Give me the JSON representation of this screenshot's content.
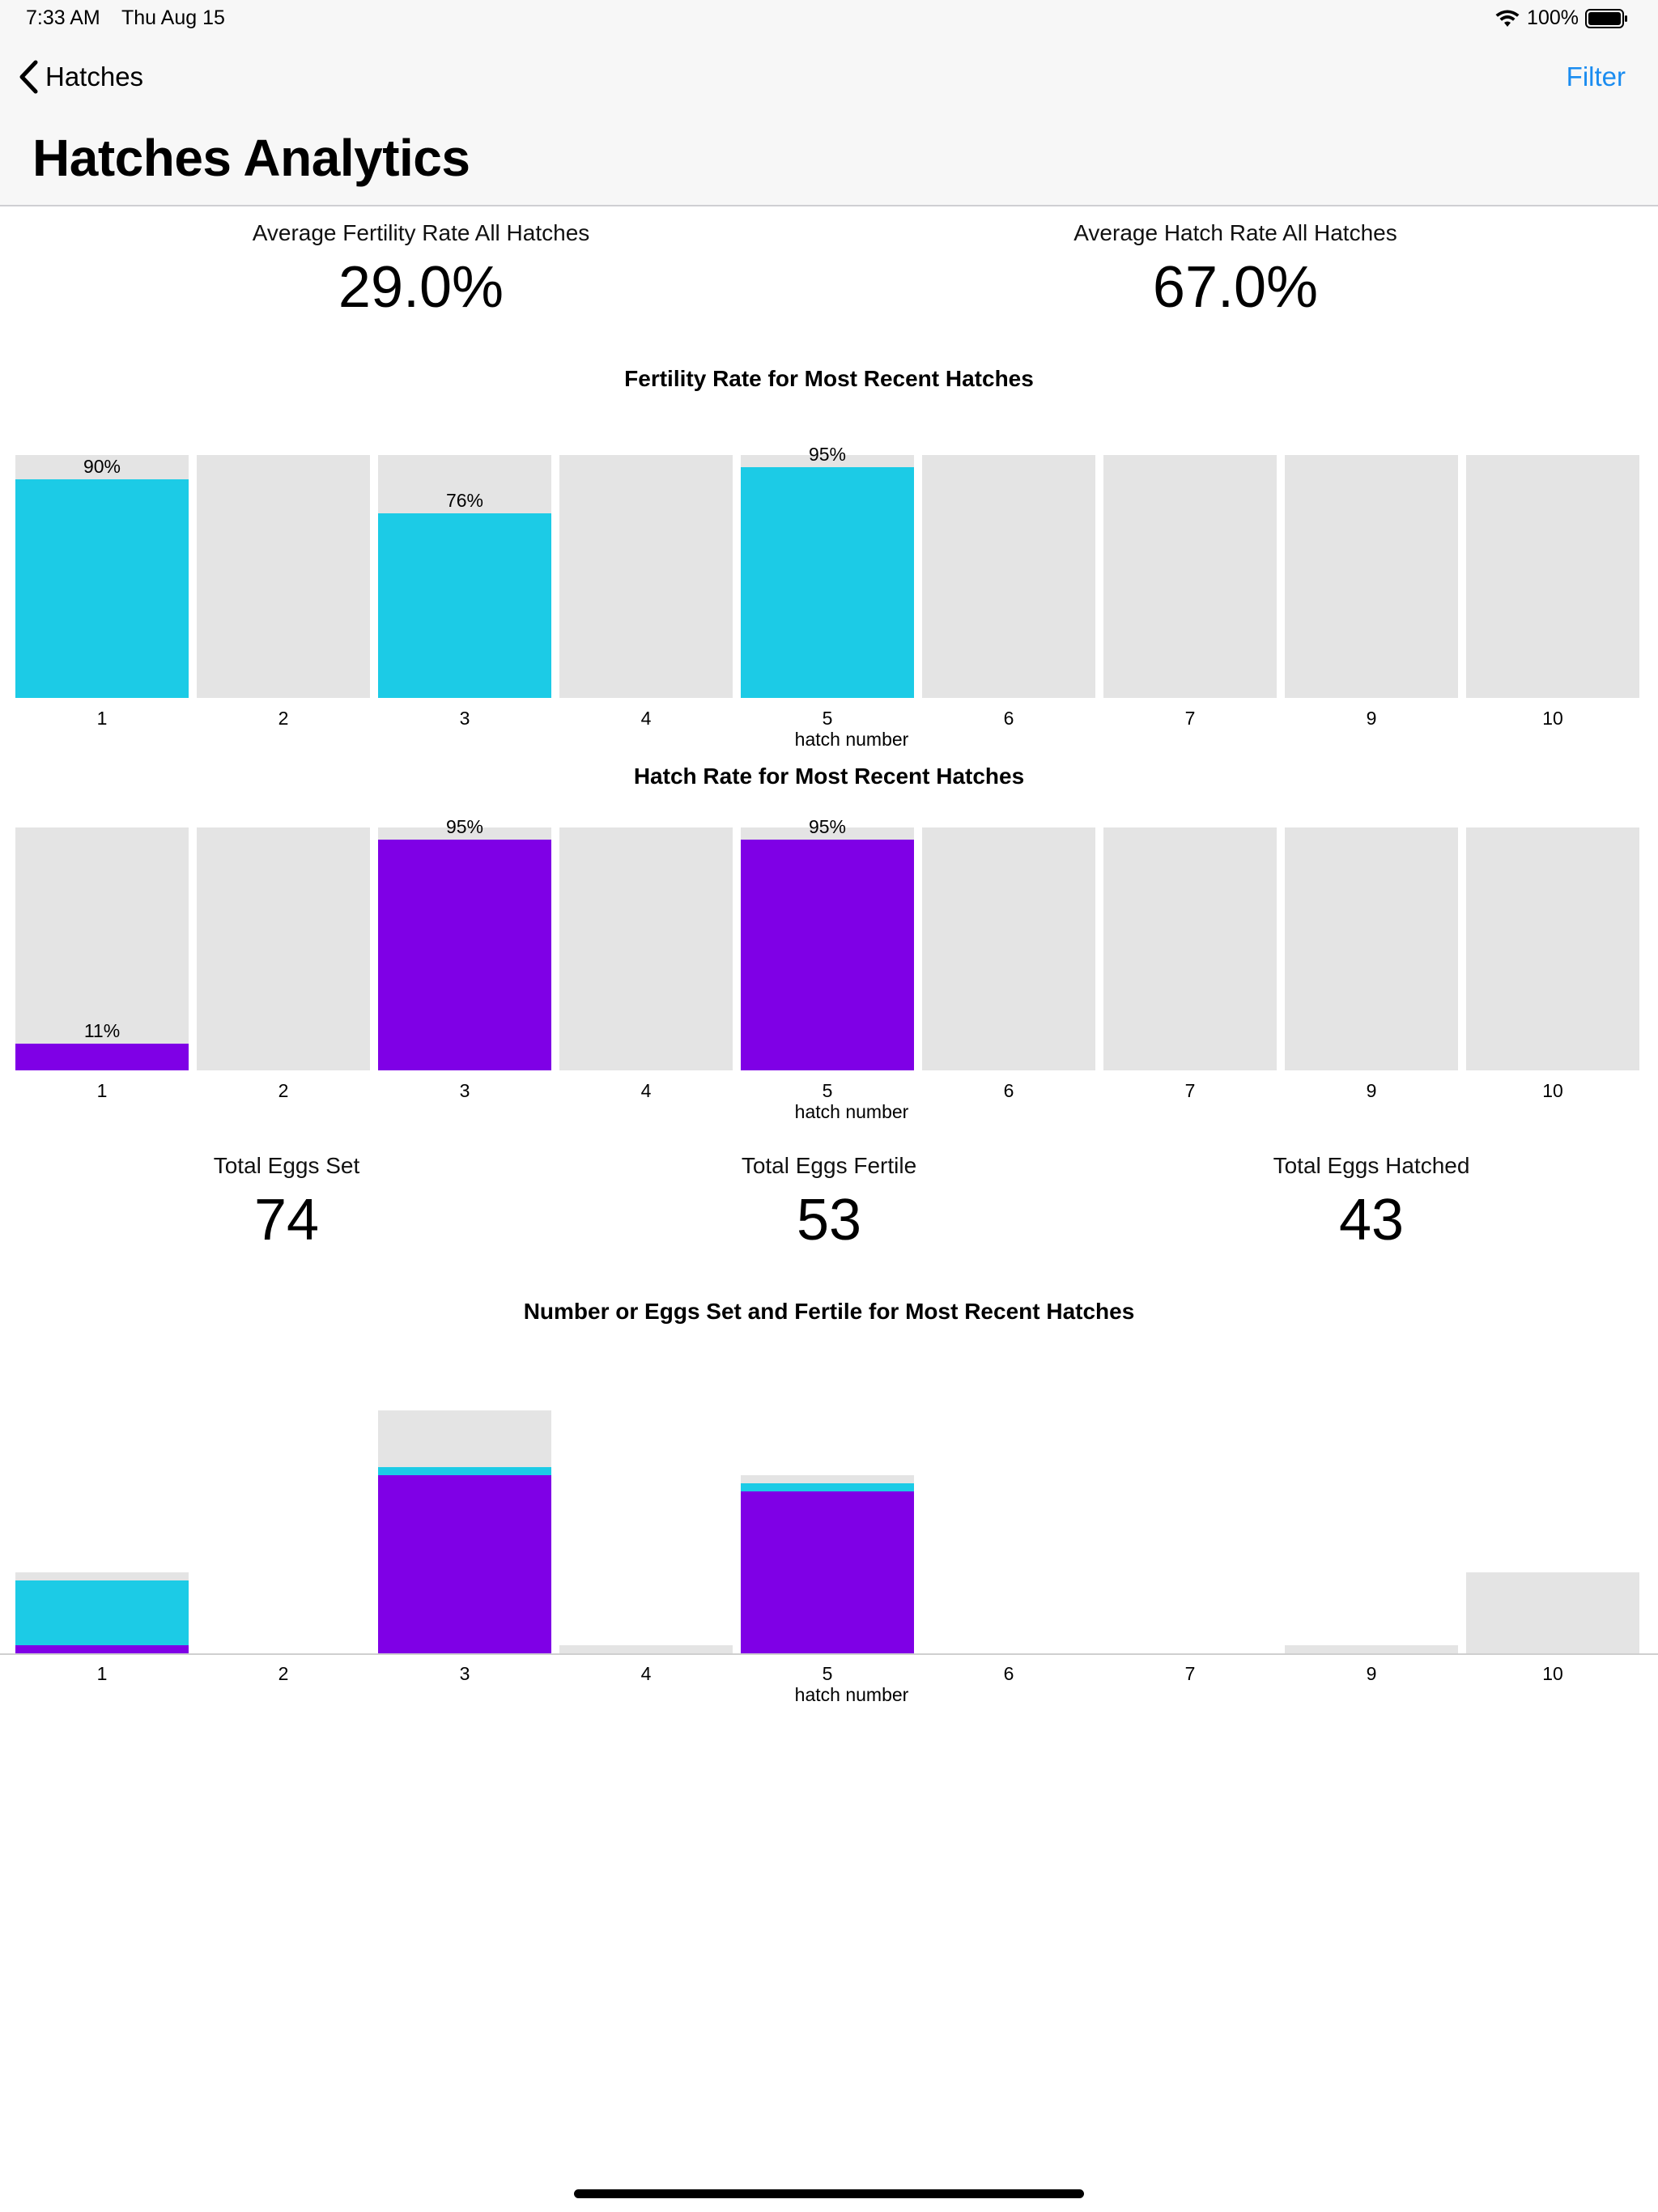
{
  "status_bar": {
    "time": "7:33 AM",
    "date": "Thu Aug 15",
    "battery": "100%"
  },
  "nav": {
    "back_label": "Hatches",
    "filter_label": "Filter",
    "title": "Hatches Analytics"
  },
  "summary_rates": {
    "fertility_label": "Average Fertility Rate All Hatches",
    "fertility_value": "29.0%",
    "hatch_label": "Average Hatch Rate All Hatches",
    "hatch_value": "67.0%"
  },
  "totals": {
    "set_label": "Total Eggs Set",
    "set_value": "74",
    "fertile_label": "Total Eggs Fertile",
    "fertile_value": "53",
    "hatched_label": "Total Eggs Hatched",
    "hatched_value": "43"
  },
  "colors": {
    "fertile": "#1ccbe6",
    "hatched": "#7f00e6",
    "track": "#e4e4e4",
    "link": "#1a8cf0"
  },
  "chart_data": [
    {
      "type": "bar",
      "title": "Fertility Rate for Most Recent Hatches",
      "xlabel": "hatch number",
      "categories": [
        "1",
        "2",
        "3",
        "4",
        "5",
        "6",
        "7",
        "9",
        "10"
      ],
      "values": [
        90,
        null,
        76,
        null,
        95,
        null,
        null,
        null,
        null
      ],
      "labels": [
        "90%",
        "",
        "76%",
        "",
        "95%",
        "",
        "",
        "",
        ""
      ],
      "ylim": [
        0,
        100
      ]
    },
    {
      "type": "bar",
      "title": "Hatch Rate for Most Recent Hatches",
      "xlabel": "hatch number",
      "categories": [
        "1",
        "2",
        "3",
        "4",
        "5",
        "6",
        "7",
        "9",
        "10"
      ],
      "values": [
        11,
        null,
        95,
        null,
        95,
        null,
        null,
        null,
        null
      ],
      "labels": [
        "11%",
        "",
        "95%",
        "",
        "95%",
        "",
        "",
        "",
        ""
      ],
      "ylim": [
        0,
        100
      ]
    },
    {
      "type": "bar",
      "title": "Number or Eggs Set and Fertile for Most Recent Hatches",
      "xlabel": "hatch number",
      "categories": [
        "1",
        "2",
        "3",
        "4",
        "5",
        "6",
        "7",
        "9",
        "10"
      ],
      "series": [
        {
          "values": [
            10,
            0,
            30,
            1,
            22,
            0,
            0,
            1,
            10
          ]
        },
        {
          "values": [
            9,
            0,
            23,
            0,
            21,
            0,
            0,
            0,
            0
          ]
        },
        {
          "values": [
            1,
            0,
            22,
            0,
            20,
            0,
            0,
            0,
            0
          ]
        }
      ],
      "ylim": [
        0,
        30
      ]
    }
  ]
}
